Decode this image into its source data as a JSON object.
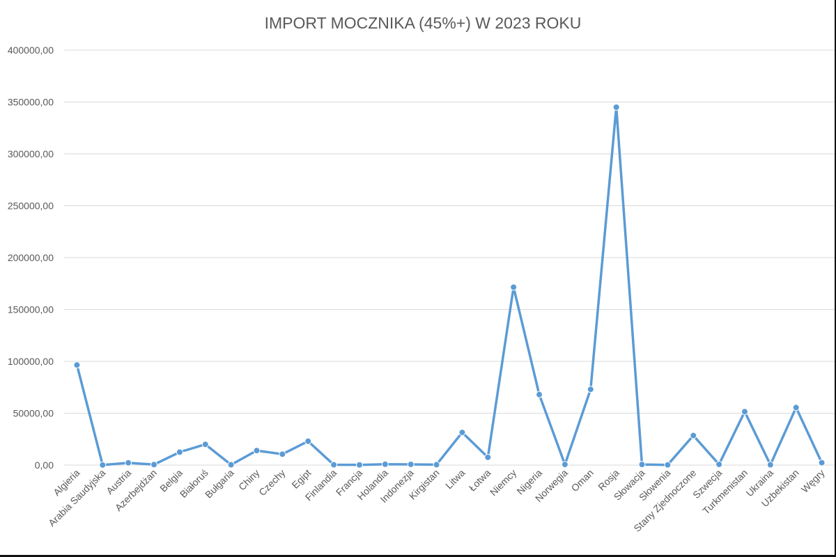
{
  "chart_data": {
    "type": "line",
    "title": "IMPORT MOCZNIKA (45%+) W 2023 ROKU",
    "xlabel": "",
    "ylabel": "",
    "ylim": [
      0,
      400000
    ],
    "yticks": [
      "0,00",
      "50000,00",
      "100000,00",
      "150000,00",
      "200000,00",
      "250000,00",
      "300000,00",
      "350000,00",
      "400000,00"
    ],
    "ytick_values": [
      0,
      50000,
      100000,
      150000,
      200000,
      250000,
      300000,
      350000,
      400000
    ],
    "grid": true,
    "legend": "none",
    "line_color": "#5b9bd5",
    "categories": [
      "Algieria",
      "Arabia Saudyjska",
      "Austria",
      "Azerbejdżan",
      "Belgia",
      "Białoruś",
      "Bułgaria",
      "Chiny",
      "Czechy",
      "Egipt",
      "Finlandia",
      "Francja",
      "Holandia",
      "Indonezja",
      "Kirgistan",
      "Litwa",
      "Łotwa",
      "Niemcy",
      "Nigeria",
      "Norwegia",
      "Oman",
      "Rosja",
      "Słowacja",
      "Słowenia",
      "Stany Zjednoczone",
      "Szwecja",
      "Turkmenistan",
      "Ukraina",
      "Uzbekistan",
      "Węgry"
    ],
    "series": [
      {
        "values": [
          96500,
          100,
          2200,
          500,
          12500,
          20000,
          300,
          14000,
          10500,
          23000,
          300,
          200,
          800,
          700,
          400,
          31500,
          7500,
          171500,
          68000,
          600,
          73000,
          345000,
          600,
          200,
          28500,
          700,
          51500,
          300,
          55500,
          2300
        ]
      }
    ]
  }
}
